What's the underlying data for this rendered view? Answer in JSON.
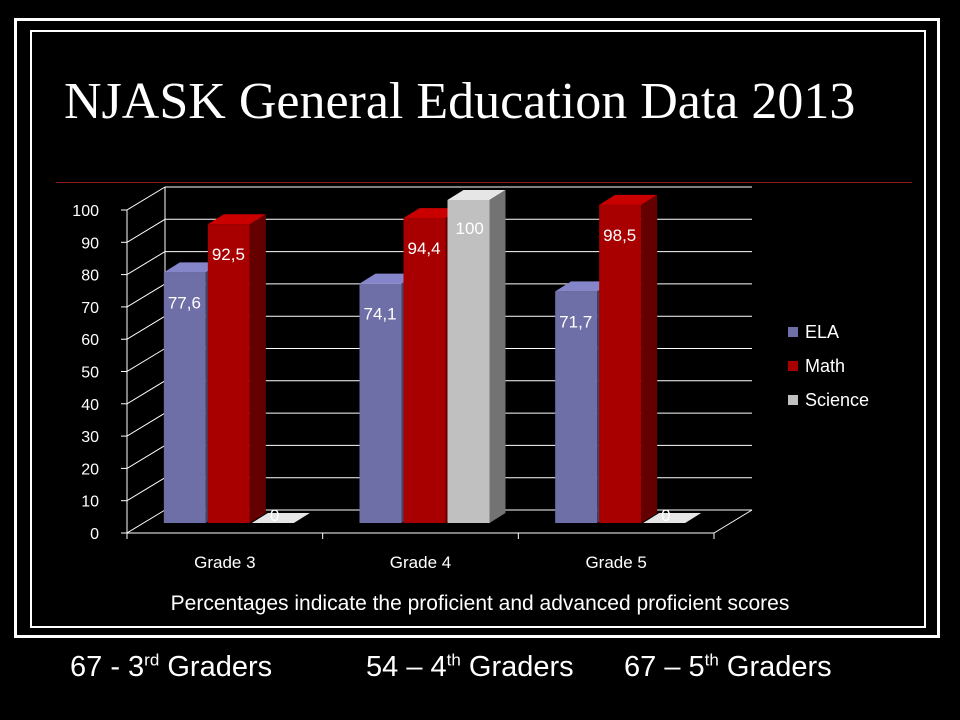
{
  "slide": {
    "title": "NJASK General Education Data 2013",
    "footnote": "Percentages indicate the proficient and advanced proficient scores"
  },
  "chart_data": {
    "type": "bar",
    "categories": [
      "Grade 3",
      "Grade 4",
      "Grade 5"
    ],
    "series": [
      {
        "name": "ELA",
        "values": [
          77.6,
          74.1,
          71.7
        ],
        "labels": [
          "77,6",
          "74,1",
          "71,7"
        ]
      },
      {
        "name": "Math",
        "values": [
          92.5,
          94.4,
          98.5
        ],
        "labels": [
          "92,5",
          "94,4",
          "98,5"
        ]
      },
      {
        "name": "Science",
        "values": [
          0,
          100,
          0
        ],
        "labels": [
          "0",
          "100",
          "0"
        ]
      }
    ],
    "ylim": [
      0,
      100
    ],
    "yticks": [
      0,
      10,
      20,
      30,
      40,
      50,
      60,
      70,
      80,
      90,
      100
    ],
    "grid": true,
    "legend_position": "right",
    "colors": {
      "ELA": "#6f6fa8",
      "Math": "#a80000",
      "Science": "#c0c0c0"
    },
    "three_d": true
  },
  "graders": [
    {
      "count": "67 - 3",
      "suffix": "rd",
      "label": " Graders"
    },
    {
      "count": "54 – 4",
      "suffix": "th",
      "label": " Graders"
    },
    {
      "count": "67 – 5",
      "suffix": "th",
      "label": " Graders"
    }
  ]
}
